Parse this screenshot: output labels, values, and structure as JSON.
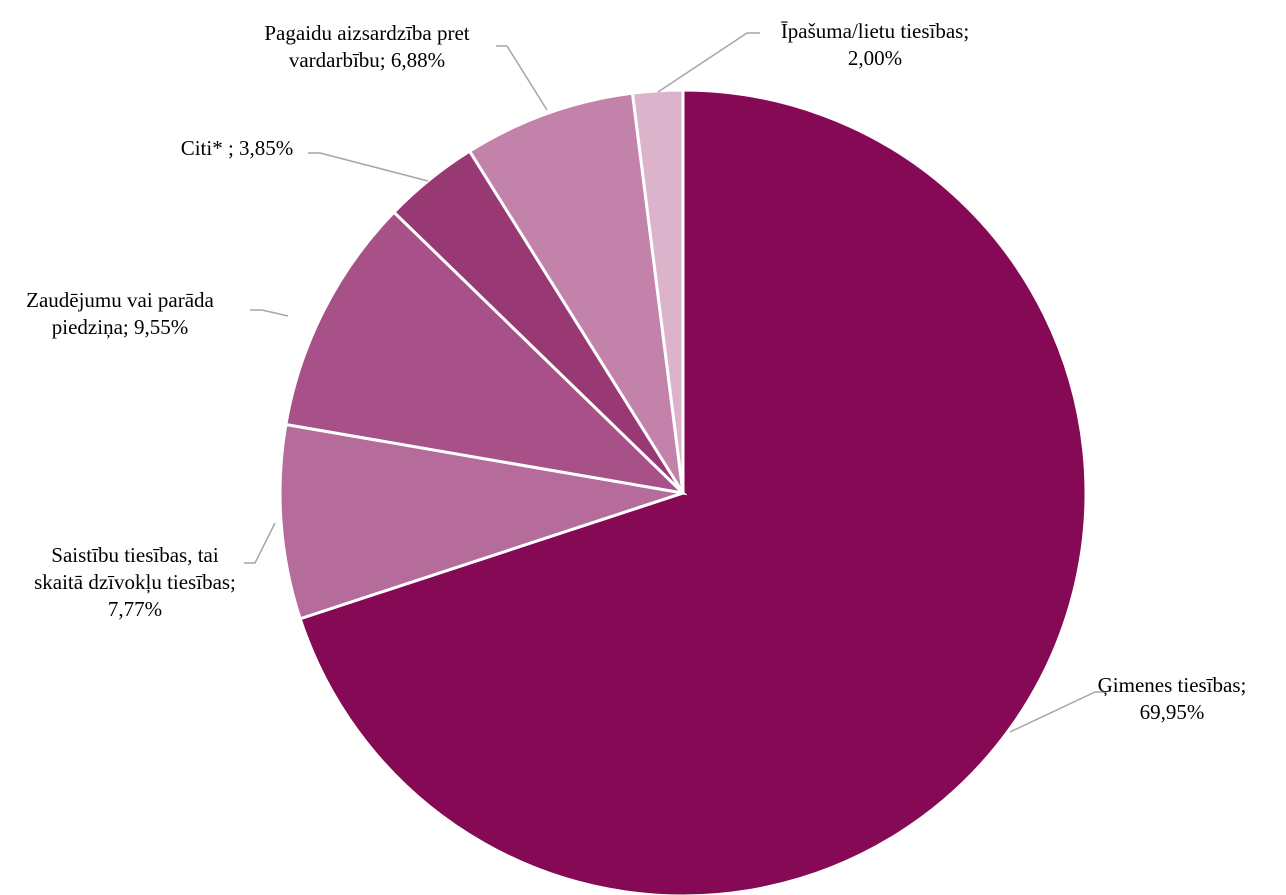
{
  "chart_data": {
    "type": "pie",
    "title": "",
    "start_angle_deg": 0,
    "direction": "clockwise",
    "slices": [
      {
        "name": "Ģimenes tiesības",
        "value": 69.95,
        "label_lines": [
          "Ģimenes tiesības;",
          "69,95%"
        ],
        "color": "#850955"
      },
      {
        "name": "Saistību tiesības, tai skaitā dzīvokļu tiesības",
        "value": 7.77,
        "label_lines": [
          "Saistību tiesības, tai",
          "skaitā dzīvokļu tiesības;",
          "7,77%"
        ],
        "color": "#b56c9a"
      },
      {
        "name": "Zaudējumu vai parāda piedziņa",
        "value": 9.55,
        "label_lines": [
          "Zaudējumu vai parāda",
          "piedziņa; 9,55%"
        ],
        "color": "#a85088"
      },
      {
        "name": "Citi*",
        "value": 3.85,
        "label_lines": [
          "Citi* ; 3,85%"
        ],
        "color": "#993973"
      },
      {
        "name": "Pagaidu aizsardzība pret vardarbību",
        "value": 6.88,
        "label_lines": [
          "Pagaidu aizsardzība pret",
          "vardarbību; 6,88%"
        ],
        "color": "#c282aa"
      },
      {
        "name": "Īpašuma/lietu tiesības",
        "value": 2.0,
        "label_lines": [
          "Īpašuma/lietu tiesības;",
          "2,00%"
        ],
        "color": "#dbb4cc"
      }
    ]
  }
}
